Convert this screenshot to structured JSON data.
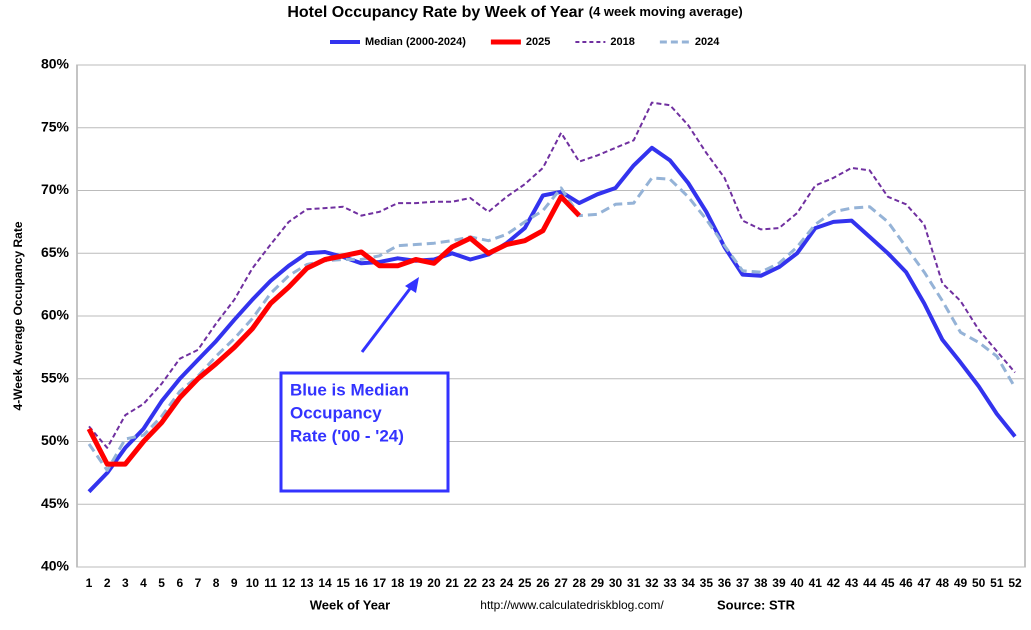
{
  "chart_data": {
    "type": "line",
    "title": "Hotel Occupancy Rate by  Week of Year",
    "subtitle": "(4 week moving average)",
    "y_label": "4-Week Average Occupancy Rate",
    "x_label": "Week of Year",
    "source_url": "http://www.calculatedriskblog.com/",
    "source": "Source: STR",
    "annotation": [
      "Blue is Median",
      "Occupancy",
      "Rate ('00 - '24)"
    ],
    "annotation_color": "#3333ff",
    "legend": "top",
    "grid": true,
    "categories": [
      "1",
      "2",
      "3",
      "4",
      "5",
      "6",
      "7",
      "8",
      "9",
      "10",
      "11",
      "12",
      "13",
      "14",
      "15",
      "16",
      "17",
      "18",
      "19",
      "20",
      "21",
      "22",
      "23",
      "24",
      "25",
      "26",
      "27",
      "28",
      "29",
      "30",
      "31",
      "32",
      "33",
      "34",
      "35",
      "36",
      "37",
      "38",
      "39",
      "40",
      "41",
      "42",
      "43",
      "44",
      "45",
      "46",
      "47",
      "48",
      "49",
      "50",
      "51",
      "52"
    ],
    "ylim": [
      40,
      80
    ],
    "yticks": [
      {
        "value": 40,
        "label": "40%"
      },
      {
        "value": 45,
        "label": "45%"
      },
      {
        "value": 50,
        "label": "50%"
      },
      {
        "value": 55,
        "label": "55%"
      },
      {
        "value": 60,
        "label": "60%"
      },
      {
        "value": 65,
        "label": "65%"
      },
      {
        "value": 70,
        "label": "70%"
      },
      {
        "value": 75,
        "label": "75%"
      },
      {
        "value": 80,
        "label": "80%"
      }
    ],
    "series": [
      {
        "name": "Median (2000-2024)",
        "color": "#3333ee",
        "width": 4,
        "dashed": false,
        "values": [
          46.0,
          47.5,
          49.5,
          51.0,
          53.2,
          55.0,
          56.5,
          58.0,
          59.7,
          61.3,
          62.8,
          64.0,
          65.0,
          65.1,
          64.7,
          64.2,
          64.3,
          64.6,
          64.4,
          64.5,
          65.0,
          64.5,
          64.9,
          65.8,
          67.0,
          69.6,
          69.9,
          69.0,
          69.7,
          70.2,
          72.0,
          73.4,
          72.4,
          70.6,
          68.3,
          65.5,
          63.3,
          63.2,
          63.9,
          65.0,
          67.0,
          67.5,
          67.6,
          66.3,
          65.0,
          63.5,
          61.0,
          58.1,
          56.3,
          54.4,
          52.2,
          50.4
        ]
      },
      {
        "name": "2025",
        "color": "#ff0000",
        "width": 5,
        "dashed": false,
        "values": [
          51.0,
          48.2,
          48.2,
          50.0,
          51.5,
          53.5,
          55.0,
          56.2,
          57.5,
          59.0,
          61.0,
          62.3,
          63.8,
          64.5,
          64.8,
          65.1,
          64.0,
          64.0,
          64.5,
          64.2,
          65.5,
          66.2,
          65.0,
          65.7,
          66.0,
          66.8,
          69.5,
          68.0,
          null,
          null,
          null,
          null,
          null,
          null,
          null,
          null,
          null,
          null,
          null,
          null,
          null,
          null,
          null,
          null,
          null,
          null,
          null,
          null,
          null,
          null,
          null,
          null
        ]
      },
      {
        "name": "2018",
        "color": "#7030a0",
        "width": 2,
        "dashed": true,
        "values": [
          51.2,
          49.5,
          52.1,
          53.0,
          54.6,
          56.6,
          57.3,
          59.4,
          61.3,
          63.8,
          65.7,
          67.5,
          68.5,
          68.6,
          68.7,
          68.0,
          68.3,
          69.0,
          69.0,
          69.1,
          69.1,
          69.4,
          68.3,
          69.5,
          70.5,
          71.8,
          74.6,
          72.3,
          72.8,
          73.4,
          74.0,
          77.0,
          76.8,
          75.2,
          73.0,
          71.0,
          67.6,
          66.9,
          67.0,
          68.2,
          70.4,
          71.0,
          71.8,
          71.6,
          69.5,
          68.9,
          67.3,
          62.6,
          61.2,
          58.9,
          57.2,
          55.5
        ]
      },
      {
        "name": "2024",
        "color": "#95b3d7",
        "width": 3,
        "dashed": true,
        "values": [
          49.8,
          47.7,
          50.2,
          50.5,
          52.0,
          54.0,
          55.2,
          56.8,
          58.2,
          59.8,
          61.8,
          63.2,
          64.1,
          64.4,
          64.5,
          64.5,
          64.8,
          65.6,
          65.7,
          65.8,
          66.0,
          66.3,
          66.0,
          66.5,
          67.5,
          68.4,
          70.2,
          68.0,
          68.1,
          68.9,
          69.0,
          71.0,
          70.9,
          69.5,
          67.7,
          65.6,
          63.6,
          63.5,
          64.2,
          65.5,
          67.3,
          68.3,
          68.6,
          68.7,
          67.5,
          65.5,
          63.5,
          61.2,
          58.7,
          57.9,
          56.8,
          54.3
        ]
      }
    ]
  }
}
